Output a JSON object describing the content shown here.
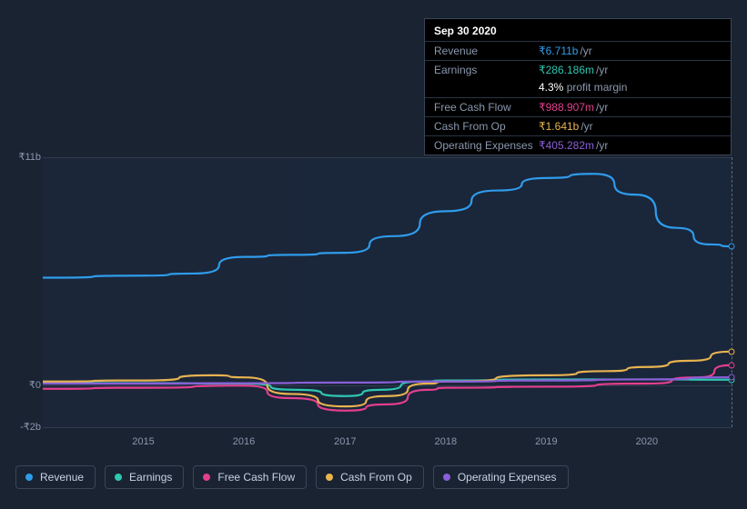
{
  "background_color": "#1a2332",
  "tooltip": {
    "title": "Sep 30 2020",
    "rows": [
      {
        "label": "Revenue",
        "value": "₹6.711b",
        "unit": "/yr",
        "color": "#2f9ceb"
      },
      {
        "label": "Earnings",
        "value": "₹286.186m",
        "unit": "/yr",
        "color": "#2ec7b1",
        "sub_pct": "4.3%",
        "sub_text": "profit margin"
      },
      {
        "label": "Free Cash Flow",
        "value": "₹988.907m",
        "unit": "/yr",
        "color": "#e43f8e"
      },
      {
        "label": "Cash From Op",
        "value": "₹1.641b",
        "unit": "/yr",
        "color": "#e8b351"
      },
      {
        "label": "Operating Expenses",
        "value": "₹405.282m",
        "unit": "/yr",
        "color": "#8a5fd7"
      }
    ]
  },
  "chart": {
    "type": "line",
    "ylim": [
      -2,
      11
    ],
    "yticks": [
      {
        "value": 11,
        "label": "₹11b"
      },
      {
        "value": 0,
        "label": "₹0"
      },
      {
        "value": -2,
        "label": "-₹2b"
      }
    ],
    "x_categories": [
      "2015",
      "2016",
      "2017",
      "2018",
      "2019",
      "2020"
    ],
    "x_positions": [
      0.146,
      0.292,
      0.439,
      0.585,
      0.731,
      0.877
    ],
    "gridline_color": "#303b4e",
    "plot_bg": "linear-gradient(to right, rgba(30,45,70,0.35), rgba(25,40,65,0.55))",
    "label_color": "#8a98ae",
    "label_fontsize": 11,
    "line_width": 2.2,
    "cursor_x": 1.0,
    "series": [
      {
        "name": "Revenue",
        "color": "#2f9ceb",
        "points": [
          [
            0.0,
            5.2
          ],
          [
            0.146,
            5.3
          ],
          [
            0.22,
            5.4
          ],
          [
            0.292,
            6.2
          ],
          [
            0.36,
            6.3
          ],
          [
            0.439,
            6.4
          ],
          [
            0.51,
            7.2
          ],
          [
            0.585,
            8.4
          ],
          [
            0.66,
            9.4
          ],
          [
            0.731,
            10.0
          ],
          [
            0.8,
            10.2
          ],
          [
            0.86,
            9.2
          ],
          [
            0.92,
            7.6
          ],
          [
            0.97,
            6.8
          ],
          [
            1.0,
            6.711
          ]
        ]
      },
      {
        "name": "Earnings",
        "color": "#2ec7b1",
        "points": [
          [
            0.0,
            0.15
          ],
          [
            0.146,
            0.12
          ],
          [
            0.292,
            0.1
          ],
          [
            0.37,
            -0.2
          ],
          [
            0.439,
            -0.5
          ],
          [
            0.49,
            -0.2
          ],
          [
            0.55,
            0.2
          ],
          [
            0.585,
            0.25
          ],
          [
            0.731,
            0.3
          ],
          [
            0.877,
            0.3
          ],
          [
            1.0,
            0.286
          ]
        ]
      },
      {
        "name": "Free Cash Flow",
        "color": "#e43f8e",
        "points": [
          [
            0.0,
            -0.15
          ],
          [
            0.146,
            -0.1
          ],
          [
            0.292,
            0.0
          ],
          [
            0.36,
            -0.6
          ],
          [
            0.439,
            -1.2
          ],
          [
            0.5,
            -0.9
          ],
          [
            0.56,
            -0.2
          ],
          [
            0.585,
            -0.1
          ],
          [
            0.731,
            -0.05
          ],
          [
            0.877,
            0.1
          ],
          [
            0.95,
            0.4
          ],
          [
            1.0,
            0.989
          ]
        ]
      },
      {
        "name": "Cash From Op",
        "color": "#e8b351",
        "points": [
          [
            0.0,
            0.2
          ],
          [
            0.146,
            0.25
          ],
          [
            0.25,
            0.5
          ],
          [
            0.292,
            0.4
          ],
          [
            0.36,
            -0.4
          ],
          [
            0.439,
            -1.0
          ],
          [
            0.5,
            -0.5
          ],
          [
            0.56,
            0.1
          ],
          [
            0.585,
            0.2
          ],
          [
            0.731,
            0.5
          ],
          [
            0.82,
            0.7
          ],
          [
            0.877,
            0.9
          ],
          [
            0.94,
            1.2
          ],
          [
            1.0,
            1.641
          ]
        ]
      },
      {
        "name": "Operating Expenses",
        "color": "#8a5fd7",
        "points": [
          [
            0.0,
            0.1
          ],
          [
            0.146,
            0.1
          ],
          [
            0.292,
            0.12
          ],
          [
            0.439,
            0.15
          ],
          [
            0.585,
            0.2
          ],
          [
            0.731,
            0.25
          ],
          [
            0.877,
            0.3
          ],
          [
            1.0,
            0.405
          ]
        ]
      }
    ]
  },
  "legend": [
    {
      "label": "Revenue",
      "color": "#2f9ceb"
    },
    {
      "label": "Earnings",
      "color": "#2ec7b1"
    },
    {
      "label": "Free Cash Flow",
      "color": "#e43f8e"
    },
    {
      "label": "Cash From Op",
      "color": "#e8b351"
    },
    {
      "label": "Operating Expenses",
      "color": "#8a5fd7"
    }
  ]
}
